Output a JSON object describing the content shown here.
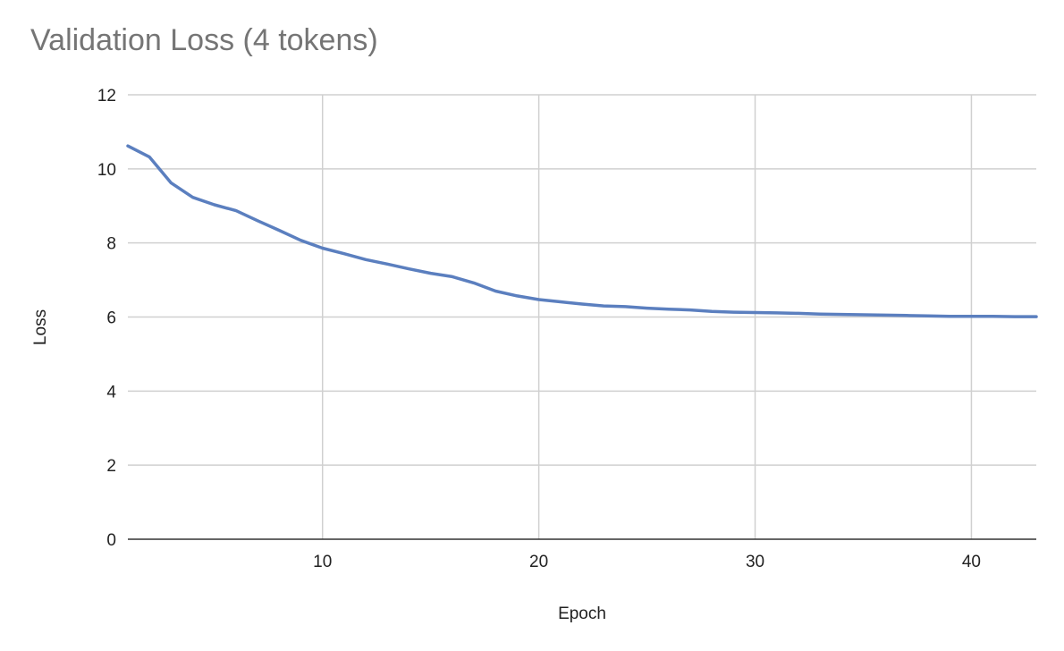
{
  "chart_data": {
    "type": "line",
    "title": "Validation Loss (4 tokens)",
    "xlabel": "Epoch",
    "ylabel": "Loss",
    "xlim": [
      1,
      43
    ],
    "ylim": [
      0,
      12
    ],
    "x_ticks": [
      10,
      20,
      30,
      40
    ],
    "y_ticks": [
      0,
      2,
      4,
      6,
      8,
      10,
      12
    ],
    "grid": true,
    "legend": "none",
    "series_color": "#5b7fbf",
    "series": [
      {
        "x": [
          1,
          2,
          3,
          4,
          5,
          6,
          7,
          8,
          9,
          10,
          11,
          12,
          13,
          14,
          15,
          16,
          17,
          18,
          19,
          20,
          21,
          22,
          23,
          24,
          25,
          26,
          27,
          28,
          29,
          30,
          31,
          32,
          33,
          34,
          35,
          36,
          37,
          38,
          39,
          40,
          41,
          42,
          43
        ],
        "values": [
          10.62,
          10.32,
          9.62,
          9.23,
          9.03,
          8.87,
          8.6,
          8.34,
          8.07,
          7.86,
          7.71,
          7.55,
          7.43,
          7.3,
          7.18,
          7.09,
          6.92,
          6.7,
          6.57,
          6.47,
          6.41,
          6.35,
          6.3,
          6.28,
          6.24,
          6.21,
          6.19,
          6.15,
          6.13,
          6.12,
          6.11,
          6.1,
          6.08,
          6.07,
          6.06,
          6.05,
          6.04,
          6.03,
          6.02,
          6.02,
          6.02,
          6.01,
          6.01
        ]
      }
    ]
  }
}
